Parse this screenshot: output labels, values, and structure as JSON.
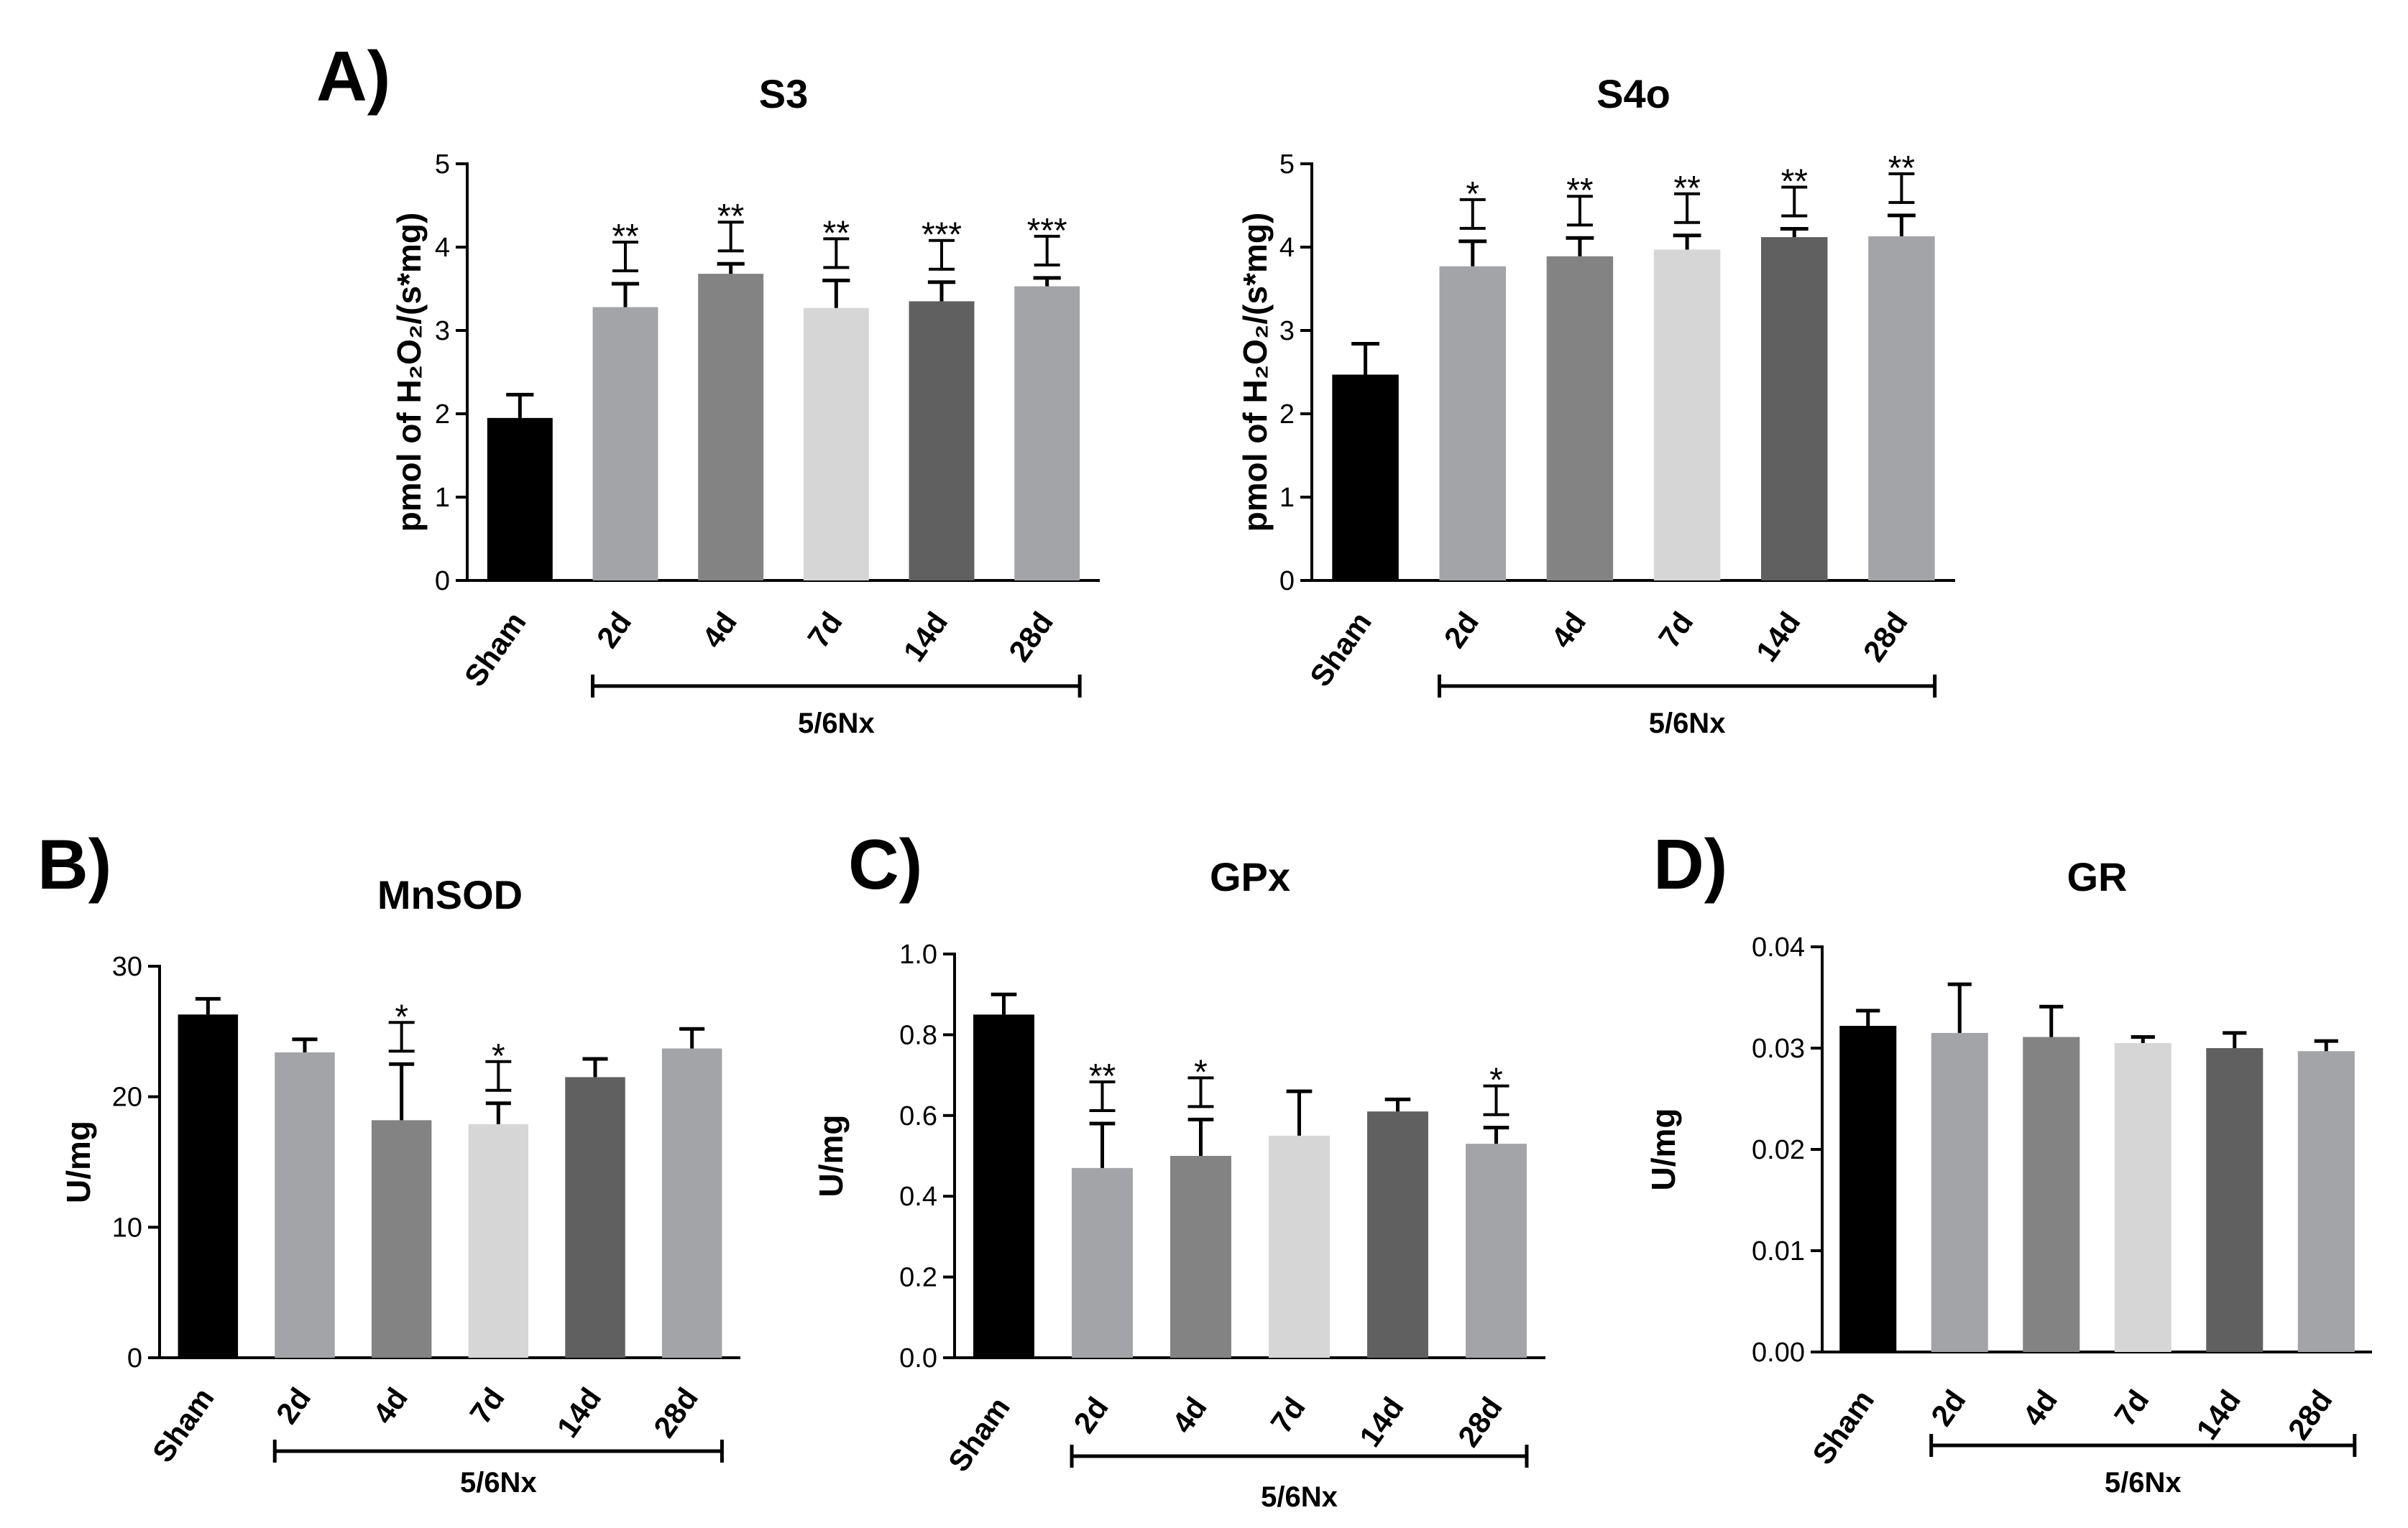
{
  "colors": {
    "Sham": "#000000",
    "2d": "#a3a4a7",
    "4d": "#838383",
    "7d": "#d6d6d6",
    "14d": "#606060",
    "28d": "#a3a4a7",
    "axis": "#000000"
  },
  "panel_labels": {
    "A": "A)",
    "B": "B)",
    "C": "C)",
    "D": "D)"
  },
  "chart_data": [
    {
      "type": "bar",
      "panel": "A",
      "title": "S3",
      "ylabel": "pmol of H₂O₂/(s*mg)",
      "categories": [
        "Sham",
        "2d",
        "4d",
        "7d",
        "14d",
        "28d"
      ],
      "values": [
        1.95,
        3.28,
        3.68,
        3.27,
        3.35,
        3.53
      ],
      "errors": [
        0.28,
        0.28,
        0.12,
        0.33,
        0.23,
        0.1
      ],
      "significance": [
        "",
        "**",
        "**",
        "**",
        "***",
        "***"
      ],
      "ylim": [
        0,
        5
      ],
      "yticks": [
        "0",
        "1",
        "2",
        "3",
        "4",
        "5"
      ],
      "group_label": "5/6Nx"
    },
    {
      "type": "bar",
      "panel": "A",
      "title": "S4o",
      "ylabel": "pmol of H₂O₂/(s*mg)",
      "categories": [
        "Sham",
        "2d",
        "4d",
        "7d",
        "14d",
        "28d"
      ],
      "values": [
        2.47,
        3.77,
        3.89,
        3.97,
        4.12,
        4.13
      ],
      "errors": [
        0.37,
        0.3,
        0.22,
        0.17,
        0.1,
        0.25
      ],
      "significance": [
        "",
        "*",
        "**",
        "**",
        "**",
        "**"
      ],
      "ylim": [
        0,
        5
      ],
      "yticks": [
        "0",
        "1",
        "2",
        "3",
        "4",
        "5"
      ],
      "group_label": "5/6Nx"
    },
    {
      "type": "bar",
      "panel": "B",
      "title": "MnSOD",
      "ylabel": "U/mg",
      "categories": [
        "Sham",
        "2d",
        "4d",
        "7d",
        "14d",
        "28d"
      ],
      "values": [
        26.3,
        23.4,
        18.2,
        17.9,
        21.5,
        23.7
      ],
      "errors": [
        1.2,
        1.0,
        4.3,
        1.6,
        1.4,
        1.5
      ],
      "significance": [
        "",
        "",
        "*",
        "*",
        "",
        ""
      ],
      "ylim": [
        0,
        30
      ],
      "yticks": [
        "0",
        "10",
        "20",
        "30"
      ],
      "group_label": "5/6Nx"
    },
    {
      "type": "bar",
      "panel": "C",
      "title": "GPx",
      "ylabel": "U/mg",
      "categories": [
        "Sham",
        "2d",
        "4d",
        "7d",
        "14d",
        "28d"
      ],
      "values": [
        0.85,
        0.47,
        0.5,
        0.55,
        0.61,
        0.53
      ],
      "errors": [
        0.05,
        0.11,
        0.09,
        0.11,
        0.03,
        0.04
      ],
      "significance": [
        "",
        "**",
        "*",
        "",
        "",
        "*"
      ],
      "ylim": [
        0,
        1.0
      ],
      "yticks": [
        "0.0",
        "0.2",
        "0.4",
        "0.6",
        "0.8",
        "1.0"
      ],
      "group_label": "5/6Nx"
    },
    {
      "type": "bar",
      "panel": "D",
      "title": "GR",
      "ylabel": "U/mg",
      "categories": [
        "Sham",
        "2d",
        "4d",
        "7d",
        "14d",
        "28d"
      ],
      "values": [
        0.0322,
        0.0315,
        0.0311,
        0.0305,
        0.03,
        0.0297
      ],
      "errors": [
        0.0015,
        0.0048,
        0.003,
        0.0006,
        0.0015,
        0.001
      ],
      "significance": [
        "",
        "",
        "",
        "",
        "",
        ""
      ],
      "ylim": [
        0,
        0.04
      ],
      "yticks": [
        "0.00",
        "0.01",
        "0.02",
        "0.03",
        "0.04"
      ],
      "group_label": "5/6Nx"
    }
  ]
}
